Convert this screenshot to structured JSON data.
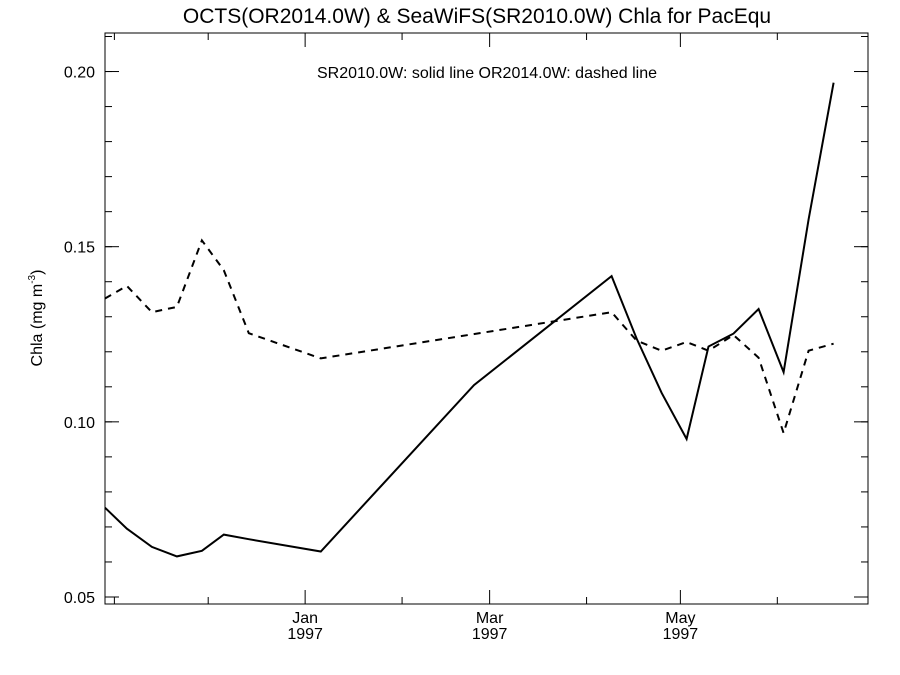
{
  "chart_data": {
    "type": "line",
    "title": "OCTS(OR2014.0W) & SeaWiFS(SR2010.0W)  Chla for PacEqu",
    "annotation": "SR2010.0W: solid line   OR2014.0W: dashed line",
    "ylabel": "Chla (mg m",
    "ylabel_sup": "-3",
    "ylabel_close": ")",
    "xlabel": "",
    "xlim": [
      "1996-10-29",
      "1997-06-30"
    ],
    "ylim": [
      0.048,
      0.211
    ],
    "yticks": [
      {
        "value": 0.05,
        "label": "0.05"
      },
      {
        "value": 0.1,
        "label": "0.10"
      },
      {
        "value": 0.15,
        "label": "0.15"
      },
      {
        "value": 0.2,
        "label": "0.20"
      }
    ],
    "yminor_step": 0.01,
    "xticks": [
      {
        "date": "1997-01-01",
        "month": "Jan",
        "year": "1997"
      },
      {
        "date": "1997-03-01",
        "month": "Mar",
        "year": "1997"
      },
      {
        "date": "1997-05-01",
        "month": "May",
        "year": "1997"
      }
    ],
    "xminor_ticks": [
      "1996-11-01",
      "1996-12-01",
      "1997-02-01",
      "1997-04-01",
      "1997-06-01"
    ],
    "grid": false,
    "series": [
      {
        "name": "SR2010.0W",
        "style": "solid",
        "color": "#000000",
        "points": [
          {
            "x": "1996-10-29",
            "y": 0.0755
          },
          {
            "x": "1996-11-05",
            "y": 0.0695
          },
          {
            "x": "1996-11-13",
            "y": 0.0643
          },
          {
            "x": "1996-11-21",
            "y": 0.0616
          },
          {
            "x": "1996-11-29",
            "y": 0.0632
          },
          {
            "x": "1996-12-06",
            "y": 0.0678
          },
          {
            "x": "1996-12-14",
            "y": 0.0665
          },
          {
            "x": "1997-01-06",
            "y": 0.063
          },
          {
            "x": "1997-02-24",
            "y": 0.1105
          },
          {
            "x": "1997-04-09",
            "y": 0.1416
          },
          {
            "x": "1997-04-17",
            "y": 0.1238
          },
          {
            "x": "1997-04-25",
            "y": 0.1083
          },
          {
            "x": "1997-05-03",
            "y": 0.0951
          },
          {
            "x": "1997-05-10",
            "y": 0.1215
          },
          {
            "x": "1997-05-18",
            "y": 0.1252
          },
          {
            "x": "1997-05-26",
            "y": 0.1322
          },
          {
            "x": "1997-06-03",
            "y": 0.1142
          },
          {
            "x": "1997-06-11",
            "y": 0.1578
          },
          {
            "x": "1997-06-19",
            "y": 0.1968
          }
        ]
      },
      {
        "name": "OR2014.0W",
        "style": "dashed",
        "color": "#000000",
        "points": [
          {
            "x": "1996-10-29",
            "y": 0.1352
          },
          {
            "x": "1996-11-05",
            "y": 0.1388
          },
          {
            "x": "1996-11-13",
            "y": 0.1313
          },
          {
            "x": "1996-11-21",
            "y": 0.1328
          },
          {
            "x": "1996-11-29",
            "y": 0.1518
          },
          {
            "x": "1996-12-06",
            "y": 0.1433
          },
          {
            "x": "1996-12-14",
            "y": 0.1253
          },
          {
            "x": "1997-01-06",
            "y": 0.1181
          },
          {
            "x": "1997-04-09",
            "y": 0.1313
          },
          {
            "x": "1997-04-17",
            "y": 0.1232
          },
          {
            "x": "1997-04-25",
            "y": 0.1203
          },
          {
            "x": "1997-05-03",
            "y": 0.1228
          },
          {
            "x": "1997-05-10",
            "y": 0.1203
          },
          {
            "x": "1997-05-18",
            "y": 0.1248
          },
          {
            "x": "1997-05-26",
            "y": 0.1183
          },
          {
            "x": "1997-06-03",
            "y": 0.0968
          },
          {
            "x": "1997-06-11",
            "y": 0.1203
          },
          {
            "x": "1997-06-19",
            "y": 0.1223
          }
        ]
      }
    ]
  }
}
